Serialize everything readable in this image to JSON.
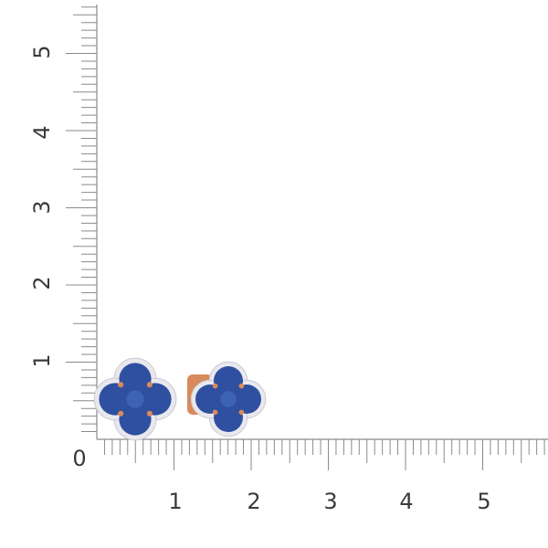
{
  "ruler": {
    "x_labels": [
      "1",
      "2",
      "3",
      "4",
      "5"
    ],
    "y_labels": [
      "1",
      "2",
      "3",
      "4",
      "5"
    ],
    "origin_label": "0",
    "tick_color": "#8a8a8a",
    "label_color": "#3a3a3a"
  },
  "product": {
    "stone_color": "#2f4fa0",
    "halo_color": "#e8e8ee",
    "metal_color": "#d98a5a"
  }
}
